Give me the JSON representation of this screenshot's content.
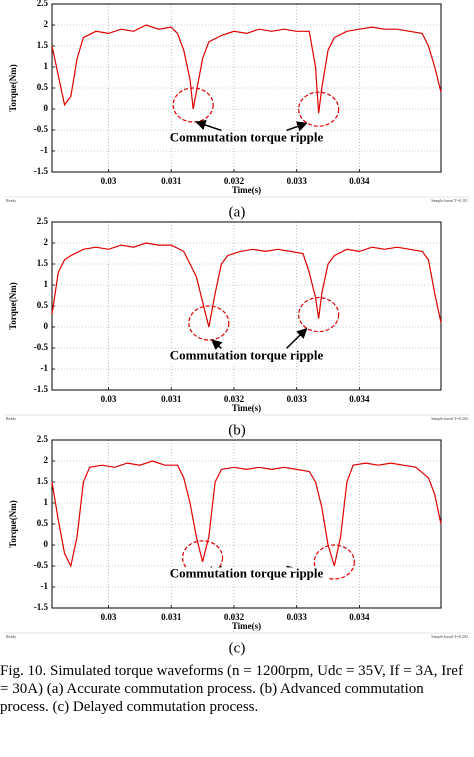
{
  "chart_data": [
    {
      "type": "line",
      "panel_label": "(a)",
      "xlabel": "Time(s)",
      "ylabel": "Torque(Nm)",
      "annotation": "Commutation torque ripple",
      "status_left": "Ready",
      "status_right": "Sample based T=0.101",
      "color": "#e00000",
      "grid": true,
      "xlim": [
        0.0291,
        0.0353
      ],
      "xticks": [
        0.03,
        0.031,
        0.032,
        0.033,
        0.034
      ],
      "ylim": [
        -1.5,
        2.5
      ],
      "yticks": [
        2.5,
        2,
        1.5,
        1,
        0.5,
        0,
        -0.5,
        -1,
        -1.5
      ],
      "x": [
        0.0291,
        0.0292,
        0.0293,
        0.0294,
        0.0295,
        0.0296,
        0.0298,
        0.03,
        0.0302,
        0.0304,
        0.0306,
        0.0308,
        0.031,
        0.0311,
        0.0312,
        0.0313,
        0.03135,
        0.0314,
        0.0315,
        0.0316,
        0.0318,
        0.032,
        0.0322,
        0.0324,
        0.0326,
        0.0328,
        0.033,
        0.0332,
        0.0333,
        0.03335,
        0.0334,
        0.0335,
        0.0336,
        0.0338,
        0.034,
        0.0342,
        0.0344,
        0.0346,
        0.0348,
        0.035,
        0.0351,
        0.0352,
        0.0353
      ],
      "values": [
        1.5,
        0.8,
        0.1,
        0.3,
        1.2,
        1.7,
        1.85,
        1.8,
        1.9,
        1.85,
        2.0,
        1.9,
        1.95,
        1.8,
        1.4,
        0.7,
        0.0,
        0.4,
        1.2,
        1.6,
        1.75,
        1.85,
        1.8,
        1.9,
        1.85,
        1.9,
        1.85,
        1.85,
        1.0,
        -0.1,
        0.5,
        1.4,
        1.7,
        1.85,
        1.9,
        1.95,
        1.9,
        1.9,
        1.85,
        1.8,
        1.5,
        1.0,
        0.4
      ]
    },
    {
      "type": "line",
      "panel_label": "(b)",
      "xlabel": "Time(s)",
      "ylabel": "Torque(Nm)",
      "annotation": "Commutation torque ripple",
      "status_left": "Ready",
      "status_right": "Sample based T=0.202",
      "color": "#e00000",
      "grid": true,
      "xlim": [
        0.0291,
        0.0353
      ],
      "xticks": [
        0.03,
        0.031,
        0.032,
        0.033,
        0.034
      ],
      "ylim": [
        -1.5,
        2.5
      ],
      "yticks": [
        2.5,
        2,
        1.5,
        1,
        0.5,
        0,
        -0.5,
        -1,
        -1.5
      ],
      "x": [
        0.0291,
        0.0292,
        0.0293,
        0.0294,
        0.0296,
        0.0298,
        0.03,
        0.0302,
        0.0304,
        0.0306,
        0.0308,
        0.031,
        0.0312,
        0.0314,
        0.0315,
        0.0316,
        0.0317,
        0.0318,
        0.0319,
        0.0321,
        0.0323,
        0.0325,
        0.0327,
        0.0329,
        0.0331,
        0.0332,
        0.0333,
        0.03335,
        0.0334,
        0.0335,
        0.0336,
        0.0338,
        0.034,
        0.0342,
        0.0344,
        0.0346,
        0.0348,
        0.035,
        0.0351,
        0.0352,
        0.0353
      ],
      "values": [
        0.3,
        1.3,
        1.6,
        1.7,
        1.85,
        1.9,
        1.85,
        1.95,
        1.9,
        2.0,
        1.95,
        1.95,
        1.8,
        1.2,
        0.6,
        0.0,
        0.8,
        1.5,
        1.7,
        1.8,
        1.85,
        1.8,
        1.85,
        1.8,
        1.75,
        1.3,
        0.7,
        0.2,
        0.8,
        1.5,
        1.7,
        1.85,
        1.8,
        1.9,
        1.85,
        1.9,
        1.85,
        1.8,
        1.6,
        0.8,
        0.1
      ]
    },
    {
      "type": "line",
      "panel_label": "(c)",
      "xlabel": "Time(s)",
      "ylabel": "Torque(Nm)",
      "annotation": "Commutation torque ripple",
      "status_left": "Ready",
      "status_right": "Sample based T=0.202",
      "color": "#e00000",
      "grid": true,
      "xlim": [
        0.0291,
        0.0353
      ],
      "xticks": [
        0.03,
        0.031,
        0.032,
        0.033,
        0.034
      ],
      "ylim": [
        -1.5,
        2.5
      ],
      "yticks": [
        2.5,
        2,
        1.5,
        1,
        0.5,
        0,
        -0.5,
        -1,
        -1.5
      ],
      "x": [
        0.0291,
        0.0292,
        0.0293,
        0.0294,
        0.0295,
        0.0296,
        0.0297,
        0.0299,
        0.0301,
        0.0303,
        0.0305,
        0.0307,
        0.0309,
        0.0311,
        0.0312,
        0.0313,
        0.0314,
        0.0315,
        0.0316,
        0.0317,
        0.0318,
        0.032,
        0.0322,
        0.0324,
        0.0326,
        0.0328,
        0.033,
        0.0332,
        0.0333,
        0.0334,
        0.0335,
        0.0336,
        0.0337,
        0.0338,
        0.0339,
        0.0341,
        0.0343,
        0.0345,
        0.0347,
        0.0349,
        0.0351,
        0.0352,
        0.0353
      ],
      "values": [
        1.5,
        0.6,
        -0.2,
        -0.5,
        0.2,
        1.5,
        1.85,
        1.9,
        1.85,
        1.95,
        1.9,
        2.0,
        1.9,
        1.9,
        1.6,
        1.0,
        0.2,
        -0.4,
        0.2,
        1.5,
        1.8,
        1.85,
        1.8,
        1.85,
        1.8,
        1.85,
        1.8,
        1.75,
        1.5,
        0.9,
        0.0,
        -0.5,
        0.2,
        1.5,
        1.9,
        1.95,
        1.9,
        1.95,
        1.9,
        1.85,
        1.6,
        1.2,
        0.5
      ]
    }
  ],
  "caption": "Fig. 10. Simulated torque waveforms (n = 1200rpm, Udc = 35V, If = 3A, Iref = 30A) (a) Accurate commutation process. (b) Advanced commutation process. (c) Delayed commutation process."
}
